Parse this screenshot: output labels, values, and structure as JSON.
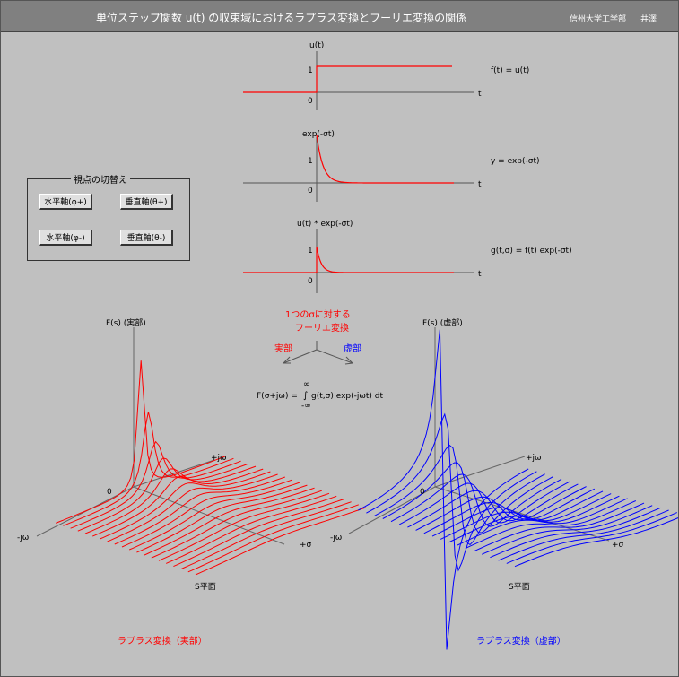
{
  "header": {
    "title": "単位ステップ関数 u(t) の収束域におけるラプラス変換とフーリエ変換の関係",
    "university": "信州大学工学部",
    "author": "井澤"
  },
  "view_switch": {
    "legend": "視点の切替え",
    "buttons": [
      "水平軸(φ+)",
      "垂直軸(θ+)",
      "水平軸(φ-)",
      "垂直軸(θ-)"
    ]
  },
  "plots": {
    "step": {
      "ylabel": "u(t)",
      "tick_one": "1",
      "tick_zero": "0",
      "xlabel": "t",
      "formula": "f(t) = u(t)"
    },
    "exp": {
      "ylabel": "exp(-σt)",
      "tick_one": "1",
      "tick_zero": "0",
      "xlabel": "t",
      "formula": "y = exp(-σt)"
    },
    "product": {
      "ylabel": "u(t) * exp(-σt)",
      "tick_one": "1",
      "tick_zero": "0",
      "xlabel": "t",
      "formula": "g(t,σ) = f(t)  exp(-σt)"
    }
  },
  "fourier": {
    "caption_line1": "1つのσに対する",
    "caption_line2": "フーリエ変換",
    "real_label": "実部",
    "imag_label": "虚部",
    "formula_lhs": "F(σ+jω) =",
    "upper_limit": "∞",
    "integral": "∫",
    "integrand": "g(t,σ)  exp(-jωt) dt",
    "lower_limit": "-∞"
  },
  "surfaces": {
    "real": {
      "zlabel": "F(s) (実部)",
      "origin": "0",
      "jw_pos": "+jω",
      "jw_neg": "-jω",
      "sigma": "+σ",
      "plane": "S平面",
      "caption": "ラプラス変換（実部）"
    },
    "imag": {
      "zlabel": "F(s) (虚部)",
      "origin": "0",
      "jw_pos": "+jω",
      "jw_neg": "-jω",
      "sigma": "+σ",
      "plane": "S平面",
      "caption": "ラプラス変換（虚部）"
    }
  },
  "colors": {
    "red": "#ff0000",
    "blue": "#0000ff",
    "axis": "#555555",
    "background": "#c0c0c0",
    "title_bar": "#808080"
  }
}
